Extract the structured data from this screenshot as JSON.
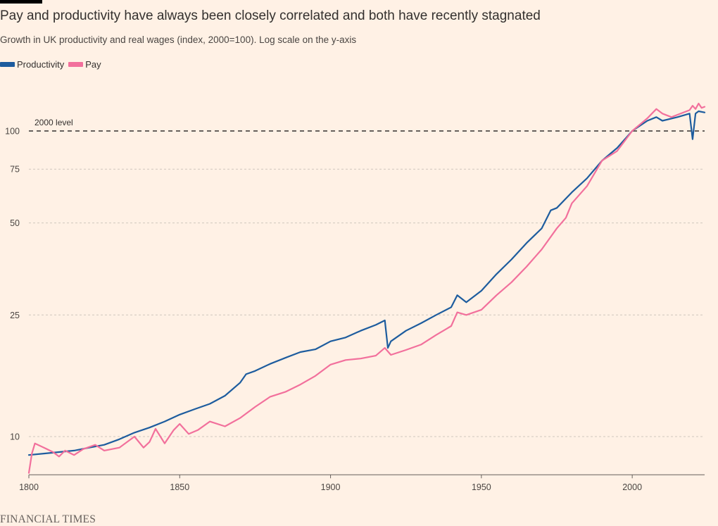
{
  "header": {
    "title": "Pay and productivity have always been closely correlated and both have recently stagnated",
    "subtitle": "Growth in UK productivity and real wages (index, 2000=100). Log scale on the y-axis"
  },
  "footer": {
    "source": "FINANCIAL TIMES"
  },
  "chart_data": {
    "type": "line",
    "title": "Pay and productivity have always been closely correlated and both have recently stagnated",
    "subtitle": "Growth in UK productivity and real wages (index, 2000=100). Log scale on the y-axis",
    "xlabel": "",
    "ylabel": "",
    "y_scale": "log",
    "xlim": [
      1800,
      2024
    ],
    "ylim": [
      7.5,
      150
    ],
    "x_ticks": [
      1800,
      1850,
      1900,
      1950,
      2000
    ],
    "y_ticks": [
      10,
      25,
      50,
      75,
      100
    ],
    "grid": "horizontal-dotted",
    "legend_position": "top-left",
    "annotations": [
      {
        "text": "2000 level",
        "y": 100
      }
    ],
    "colors": {
      "Productivity": "#1d5c9e",
      "Pay": "#f2709c",
      "reference_line": "#33302e",
      "background": "#fff1e5"
    },
    "series": [
      {
        "name": "Productivity",
        "points": [
          [
            1800,
            8.7
          ],
          [
            1805,
            8.8
          ],
          [
            1810,
            8.9
          ],
          [
            1815,
            9.0
          ],
          [
            1820,
            9.2
          ],
          [
            1825,
            9.4
          ],
          [
            1830,
            9.8
          ],
          [
            1835,
            10.3
          ],
          [
            1840,
            10.7
          ],
          [
            1845,
            11.2
          ],
          [
            1850,
            11.8
          ],
          [
            1855,
            12.3
          ],
          [
            1860,
            12.8
          ],
          [
            1865,
            13.6
          ],
          [
            1870,
            15.0
          ],
          [
            1872,
            16.0
          ],
          [
            1875,
            16.4
          ],
          [
            1880,
            17.3
          ],
          [
            1885,
            18.1
          ],
          [
            1890,
            18.9
          ],
          [
            1895,
            19.3
          ],
          [
            1900,
            20.5
          ],
          [
            1905,
            21.1
          ],
          [
            1910,
            22.2
          ],
          [
            1915,
            23.2
          ],
          [
            1918,
            24.0
          ],
          [
            1919,
            19.5
          ],
          [
            1920,
            20.5
          ],
          [
            1925,
            22.2
          ],
          [
            1930,
            23.5
          ],
          [
            1935,
            25.0
          ],
          [
            1940,
            26.5
          ],
          [
            1942,
            29.0
          ],
          [
            1945,
            27.5
          ],
          [
            1950,
            30.0
          ],
          [
            1955,
            34.0
          ],
          [
            1960,
            38.0
          ],
          [
            1965,
            43.0
          ],
          [
            1970,
            48.0
          ],
          [
            1973,
            55.0
          ],
          [
            1975,
            56.0
          ],
          [
            1980,
            63.0
          ],
          [
            1985,
            70.0
          ],
          [
            1990,
            80.0
          ],
          [
            1995,
            88.0
          ],
          [
            2000,
            100.0
          ],
          [
            2005,
            108.0
          ],
          [
            2008,
            111.0
          ],
          [
            2010,
            108.0
          ],
          [
            2015,
            111.0
          ],
          [
            2019,
            114.0
          ],
          [
            2020,
            94.0
          ],
          [
            2021,
            114.0
          ],
          [
            2022,
            116.0
          ],
          [
            2024,
            115.0
          ]
        ]
      },
      {
        "name": "Pay",
        "points": [
          [
            1800,
            7.6
          ],
          [
            1801,
            8.8
          ],
          [
            1802,
            9.5
          ],
          [
            1805,
            9.2
          ],
          [
            1808,
            8.9
          ],
          [
            1810,
            8.6
          ],
          [
            1812,
            9.0
          ],
          [
            1815,
            8.7
          ],
          [
            1818,
            9.1
          ],
          [
            1822,
            9.4
          ],
          [
            1825,
            9.0
          ],
          [
            1830,
            9.2
          ],
          [
            1835,
            10.0
          ],
          [
            1838,
            9.2
          ],
          [
            1840,
            9.6
          ],
          [
            1842,
            10.6
          ],
          [
            1845,
            9.5
          ],
          [
            1848,
            10.5
          ],
          [
            1850,
            11.0
          ],
          [
            1853,
            10.2
          ],
          [
            1856,
            10.5
          ],
          [
            1860,
            11.2
          ],
          [
            1865,
            10.8
          ],
          [
            1870,
            11.5
          ],
          [
            1875,
            12.5
          ],
          [
            1880,
            13.5
          ],
          [
            1885,
            14.0
          ],
          [
            1890,
            14.8
          ],
          [
            1895,
            15.8
          ],
          [
            1900,
            17.2
          ],
          [
            1905,
            17.8
          ],
          [
            1910,
            18.0
          ],
          [
            1915,
            18.4
          ],
          [
            1918,
            19.5
          ],
          [
            1920,
            18.5
          ],
          [
            1925,
            19.2
          ],
          [
            1930,
            20.0
          ],
          [
            1935,
            21.5
          ],
          [
            1940,
            23.0
          ],
          [
            1942,
            25.5
          ],
          [
            1945,
            25.0
          ],
          [
            1950,
            26.0
          ],
          [
            1955,
            29.0
          ],
          [
            1960,
            32.0
          ],
          [
            1965,
            36.0
          ],
          [
            1970,
            41.0
          ],
          [
            1975,
            48.0
          ],
          [
            1978,
            52.0
          ],
          [
            1980,
            58.0
          ],
          [
            1985,
            66.0
          ],
          [
            1990,
            80.0
          ],
          [
            1995,
            86.0
          ],
          [
            2000,
            100.0
          ],
          [
            2005,
            110.0
          ],
          [
            2008,
            118.0
          ],
          [
            2010,
            114.0
          ],
          [
            2013,
            111.0
          ],
          [
            2015,
            113.0
          ],
          [
            2019,
            117.0
          ],
          [
            2020,
            121.0
          ],
          [
            2021,
            118.0
          ],
          [
            2022,
            123.0
          ],
          [
            2023,
            119.0
          ],
          [
            2024,
            120.0
          ]
        ]
      }
    ]
  }
}
